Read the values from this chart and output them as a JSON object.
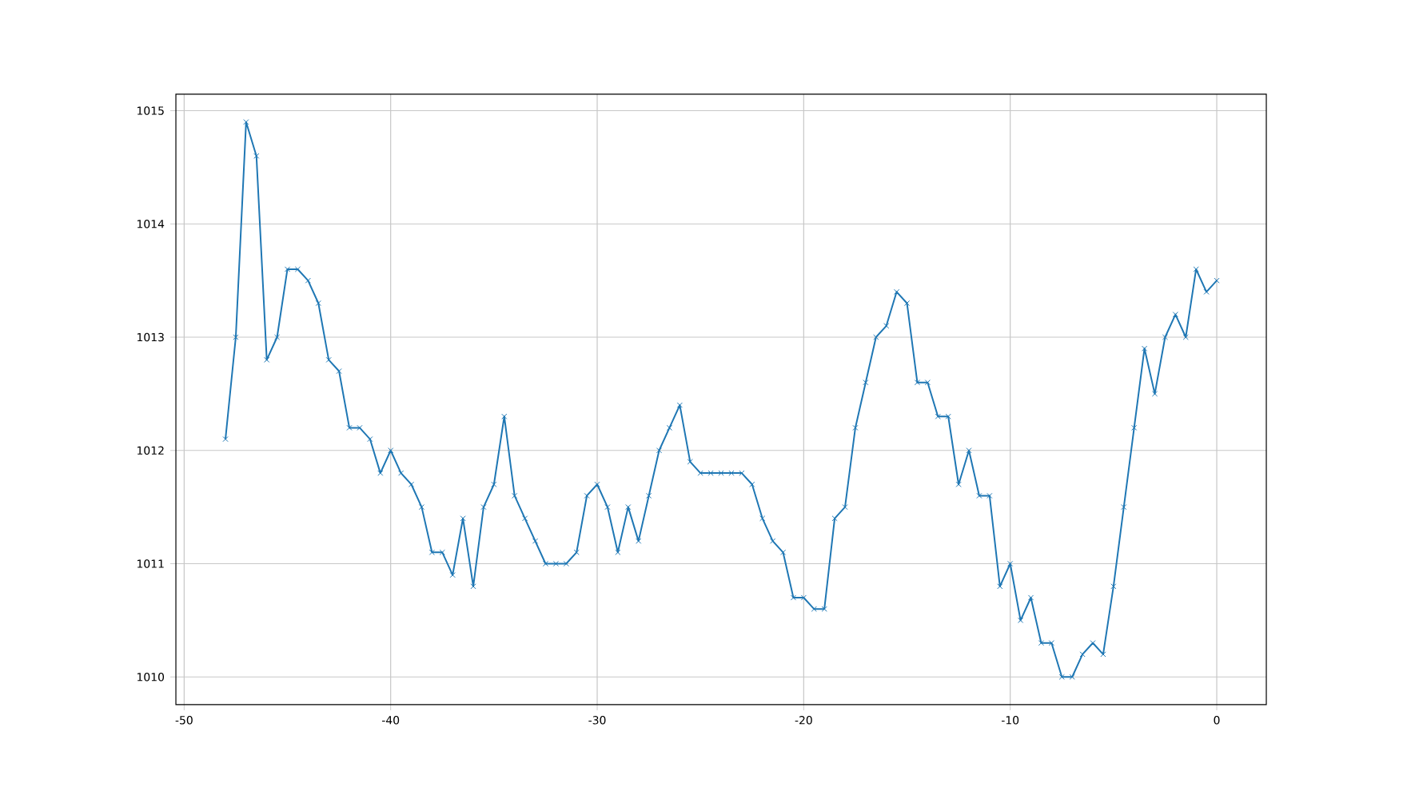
{
  "chart_data": {
    "type": "line",
    "x": [
      -48,
      -47.5,
      -47,
      -46.5,
      -46,
      -45.5,
      -45,
      -44.5,
      -44,
      -43.5,
      -43,
      -42.5,
      -42,
      -41.5,
      -41,
      -40.5,
      -40,
      -39.5,
      -39,
      -38.5,
      -38,
      -37.5,
      -37,
      -36.5,
      -36,
      -35.5,
      -35,
      -34.5,
      -34,
      -33.5,
      -33,
      -32.5,
      -32,
      -31.5,
      -31,
      -30.5,
      -30,
      -29.5,
      -29,
      -28.5,
      -28,
      -27.5,
      -27,
      -26.5,
      -26,
      -25.5,
      -25,
      -24.5,
      -24,
      -23.5,
      -23,
      -22.5,
      -22,
      -21.5,
      -21,
      -20.5,
      -20,
      -19.5,
      -19,
      -18.5,
      -18,
      -17.5,
      -17,
      -16.5,
      -16,
      -15.5,
      -15,
      -14.5,
      -14,
      -13.5,
      -13,
      -12.5,
      -12,
      -11.5,
      -11,
      -10.5,
      -10,
      -9.5,
      -9,
      -8.5,
      -8,
      -7.5,
      -7,
      -6.5,
      -6,
      -5.5,
      -5,
      -4.5,
      -4,
      -3.5,
      -3,
      -2.5,
      -2,
      -1.5,
      -1,
      -0.5,
      0
    ],
    "series": [
      {
        "color": "#1f77b4",
        "values": [
          1012.1,
          1013.0,
          1014.9,
          1014.6,
          1012.8,
          1013.0,
          1013.6,
          1013.6,
          1013.5,
          1013.3,
          1012.8,
          1012.7,
          1012.2,
          1012.2,
          1012.1,
          1011.8,
          1012.0,
          1011.8,
          1011.7,
          1011.5,
          1011.1,
          1011.1,
          1010.9,
          1011.4,
          1010.8,
          1011.5,
          1011.7,
          1012.3,
          1011.6,
          1011.4,
          1011.2,
          1011.0,
          1011.0,
          1011.0,
          1011.1,
          1011.6,
          1011.7,
          1011.5,
          1011.1,
          1011.5,
          1011.2,
          1011.6,
          1012.0,
          1012.2,
          1012.4,
          1011.9,
          1011.8,
          1011.8,
          1011.8,
          1011.8,
          1011.8,
          1011.7,
          1011.4,
          1011.2,
          1011.1,
          1010.7,
          1010.7,
          1010.6,
          1010.6,
          1011.4,
          1011.5,
          1012.2,
          1012.6,
          1013.0,
          1013.1,
          1013.4,
          1013.3,
          1012.6,
          1012.6,
          1012.3,
          1012.3,
          1011.7,
          1012.0,
          1011.6,
          1011.6,
          1010.8,
          1011.0,
          1010.5,
          1010.7,
          1010.3,
          1010.3,
          1010.0,
          1010.0,
          1010.2,
          1010.3,
          1010.2,
          1010.8,
          1011.5,
          1012.2,
          1012.9,
          1012.5,
          1013.0,
          1013.2,
          1013.0,
          1013.6,
          1013.4,
          1013.5
        ]
      }
    ],
    "xlim": [
      -50.4,
      2.4
    ],
    "ylim": [
      1009.755,
      1015.145
    ],
    "xticks": [
      -50,
      -40,
      -30,
      -20,
      -10,
      0
    ],
    "yticks": [
      1010,
      1011,
      1012,
      1013,
      1014,
      1015
    ],
    "grid": true,
    "marker": "cross",
    "line_style": "solid"
  }
}
